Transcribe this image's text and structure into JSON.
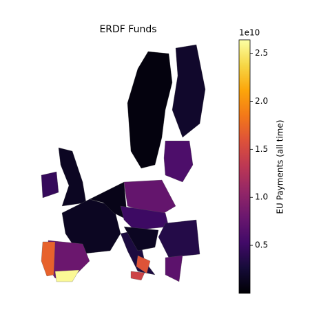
{
  "chart_data": {
    "type": "choropleth",
    "title": "ERDF Funds",
    "colorbar": {
      "label": "EU Payments (all time)",
      "multiplier": "1e10",
      "clim": [
        0,
        2.64
      ],
      "cmap": "inferno",
      "ticks": [
        0.5,
        {
          "value": 1,
          "label": "1.0"
        },
        1.5,
        {
          "value": 2,
          "label": "2.0"
        },
        2.5
      ]
    },
    "values": [
      0.05,
      0.2,
      0.6,
      0.45,
      0.15,
      0.15,
      0.1,
      0.75,
      0.5,
      0.35,
      0.3,
      1.6,
      1.45,
      0.8,
      2.6,
      1.7,
      0.7,
      0.15
    ]
  }
}
